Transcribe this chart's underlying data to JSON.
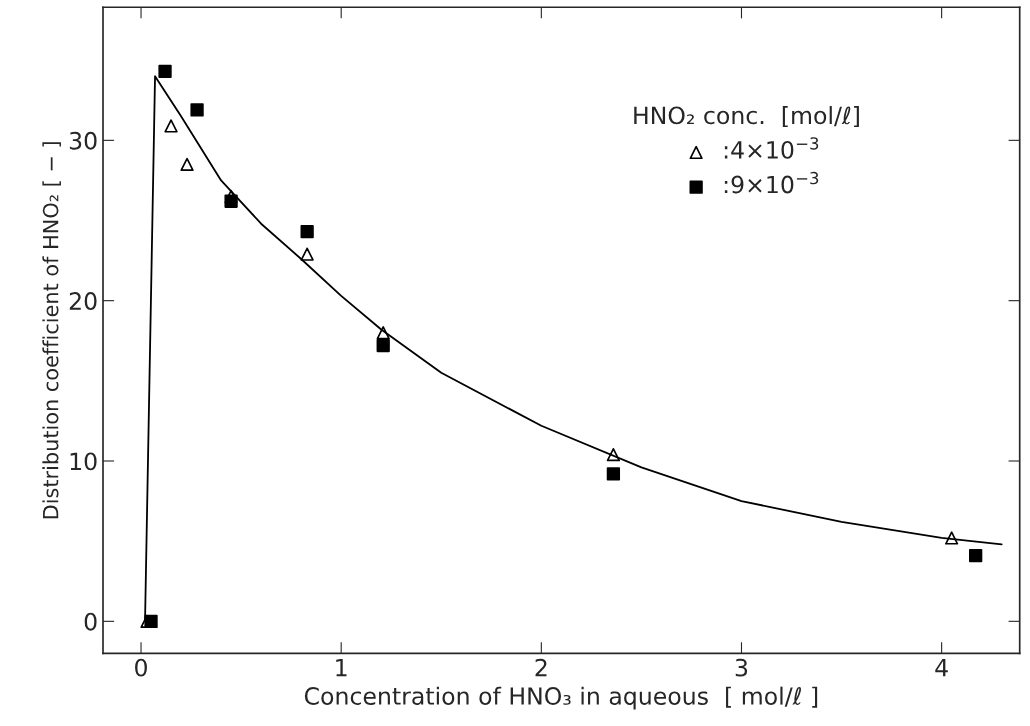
{
  "chart_data": {
    "type": "scatter",
    "xlabel": "Concentration of HNO₃ in aqueous  [ mol/ℓ ]",
    "ylabel": "Distribution coefficient of HNO₂ [ − ]",
    "legend_title": "HNO₂ conc.  [mol/ℓ]",
    "legend": "top right",
    "grid": false,
    "xlim": [
      -0.19,
      4.39
    ],
    "ylim": [
      -2.0,
      38.3
    ],
    "xticks": [
      0,
      1,
      2,
      3,
      4
    ],
    "yticks": [
      0,
      10,
      20,
      30
    ],
    "series": [
      {
        "name": ":4×10$^{−3}$",
        "marker": "triangle",
        "color": "#000000",
        "x": [
          0.03,
          0.15,
          0.23,
          0.45,
          0.83,
          1.21,
          2.36,
          4.05
        ],
        "values": [
          0,
          30.9,
          28.5,
          26.5,
          22.9,
          18.0,
          10.4,
          5.2
        ]
      },
      {
        "name": ":9×10$^{−3}$",
        "marker": "square",
        "color": "#000000",
        "x": [
          0.05,
          0.12,
          0.28,
          0.45,
          0.83,
          1.21,
          2.36,
          4.17
        ],
        "values": [
          0,
          34.3,
          31.9,
          26.2,
          24.3,
          17.2,
          9.2,
          4.1
        ]
      },
      {
        "type": "line",
        "marker": "none",
        "line_style": "solid",
        "color": "#000000",
        "x": [
          0.02,
          0.07,
          0.2,
          0.4,
          0.6,
          0.8,
          1.0,
          1.2,
          1.5,
          2.0,
          2.5,
          3.0,
          3.5,
          4.0,
          4.3
        ],
        "values": [
          0,
          34,
          31.5,
          27.5,
          24.8,
          22.6,
          20.3,
          18.2,
          15.5,
          12.2,
          9.6,
          7.5,
          6.2,
          5.2,
          4.8
        ]
      }
    ]
  }
}
